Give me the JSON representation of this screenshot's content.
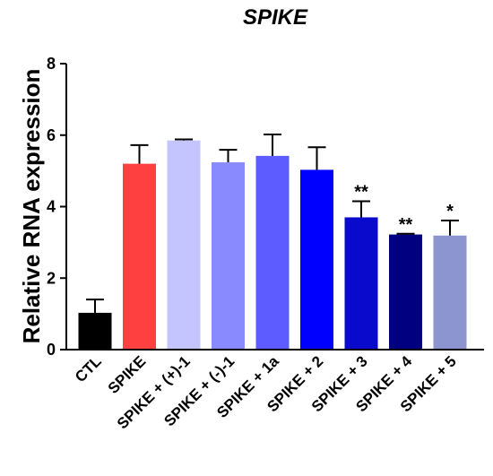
{
  "chart_data": {
    "type": "bar",
    "title": "SPIKE",
    "xlabel": "",
    "ylabel": "Relative RNA expression",
    "ylim": [
      0,
      8
    ],
    "yticks": [
      "0",
      "2",
      "4",
      "6",
      "8"
    ],
    "grid": false,
    "categories": [
      "CTL",
      "SPIKE",
      "SPIKE + (+)-1",
      "SPIKE + (-)-1",
      "SPIKE + 1a",
      "SPIKE + 2",
      "SPIKE + 3",
      "SPIKE + 4",
      "SPIKE + 5"
    ],
    "values": [
      1.03,
      5.2,
      5.85,
      5.24,
      5.42,
      5.03,
      3.7,
      3.22,
      3.19
    ],
    "errors": [
      0.37,
      0.52,
      0.03,
      0.35,
      0.6,
      0.63,
      0.45,
      0.02,
      0.42
    ],
    "significance": [
      "",
      "",
      "",
      "",
      "",
      "",
      "**",
      "**",
      "*"
    ],
    "colors": [
      "#000000",
      "#ff4040",
      "#c4c4ff",
      "#8a8aff",
      "#5c5cff",
      "#0000ff",
      "#0a0acc",
      "#000080",
      "#8c95d0"
    ]
  }
}
